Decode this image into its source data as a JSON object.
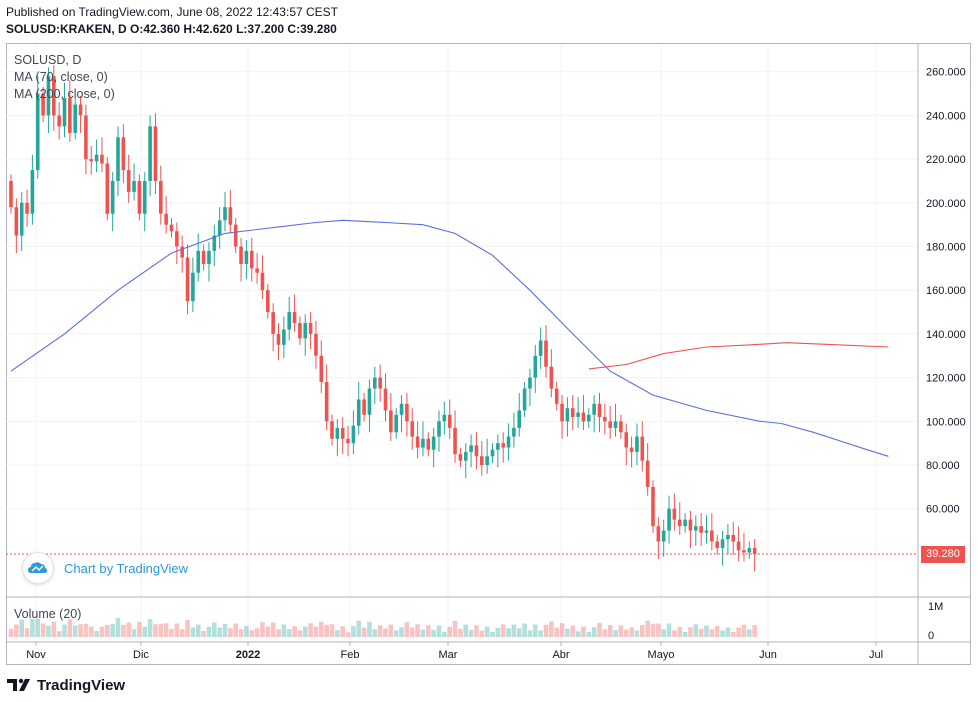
{
  "header": {
    "published": "Published on TradingView.com, June 08, 2022 12:43:57 CEST",
    "ohlc": "SOLUSD:KRAKEN, D  O:42.360 H:42.620 L:37.200 C:39.280"
  },
  "legend": {
    "symbol": "SOLUSD, D",
    "ma70": "MA (70, close, 0)",
    "ma200": "MA (200, close, 0)"
  },
  "badge": {
    "text": "Chart by TradingView"
  },
  "volume": {
    "label": "Volume (20)",
    "axis_labels": [
      "1M",
      "0"
    ]
  },
  "footer": {
    "brand": "TradingView"
  },
  "colors": {
    "up": "#26a69a",
    "down": "#ef5350",
    "ma70": "#5b6ee1",
    "ma200": "#ef5350",
    "grid": "#f0f3fa",
    "axis_text": "#131722"
  },
  "chart_data": {
    "type": "candlestick",
    "y_ticks": [
      "260.000",
      "240.000",
      "220.000",
      "200.000",
      "180.000",
      "160.000",
      "140.000",
      "120.000",
      "100.000",
      "80.000",
      "60.000"
    ],
    "y_tick_values": [
      260,
      240,
      220,
      200,
      180,
      160,
      140,
      120,
      100,
      80,
      60
    ],
    "x_labels": [
      "Nov",
      "Dic",
      "2022",
      "Feb",
      "Mar",
      "Abr",
      "Mayo",
      "Jun",
      "Jul"
    ],
    "last_price": "39.280",
    "last_price_value": 39.28,
    "candles": [
      {
        "o": 210,
        "c": 198
      },
      {
        "o": 198,
        "c": 185
      },
      {
        "o": 185,
        "c": 200
      },
      {
        "o": 200,
        "c": 195
      },
      {
        "o": 195,
        "c": 215
      },
      {
        "o": 215,
        "c": 250
      },
      {
        "o": 250,
        "c": 240
      },
      {
        "o": 240,
        "c": 258
      },
      {
        "o": 258,
        "c": 240
      },
      {
        "o": 240,
        "c": 235
      },
      {
        "o": 235,
        "c": 248
      },
      {
        "o": 248,
        "c": 232
      },
      {
        "o": 232,
        "c": 245
      },
      {
        "o": 245,
        "c": 240
      },
      {
        "o": 240,
        "c": 220
      },
      {
        "o": 220,
        "c": 219
      },
      {
        "o": 219,
        "c": 222
      },
      {
        "o": 222,
        "c": 218
      },
      {
        "o": 218,
        "c": 195
      },
      {
        "o": 195,
        "c": 210
      },
      {
        "o": 210,
        "c": 230
      },
      {
        "o": 230,
        "c": 215
      },
      {
        "o": 215,
        "c": 205
      },
      {
        "o": 205,
        "c": 210
      },
      {
        "o": 210,
        "c": 195
      },
      {
        "o": 195,
        "c": 210
      },
      {
        "o": 210,
        "c": 235
      },
      {
        "o": 235,
        "c": 210
      },
      {
        "o": 210,
        "c": 195
      },
      {
        "o": 195,
        "c": 190
      },
      {
        "o": 190,
        "c": 187
      },
      {
        "o": 187,
        "c": 180
      },
      {
        "o": 180,
        "c": 175
      },
      {
        "o": 175,
        "c": 155
      },
      {
        "o": 155,
        "c": 168
      },
      {
        "o": 168,
        "c": 178
      },
      {
        "o": 178,
        "c": 172
      },
      {
        "o": 172,
        "c": 178
      },
      {
        "o": 178,
        "c": 185
      },
      {
        "o": 185,
        "c": 192
      },
      {
        "o": 192,
        "c": 198
      },
      {
        "o": 198,
        "c": 190
      },
      {
        "o": 190,
        "c": 180
      },
      {
        "o": 180,
        "c": 172
      },
      {
        "o": 172,
        "c": 178
      },
      {
        "o": 178,
        "c": 170
      },
      {
        "o": 170,
        "c": 168
      },
      {
        "o": 168,
        "c": 160
      },
      {
        "o": 160,
        "c": 150
      },
      {
        "o": 150,
        "c": 140
      },
      {
        "o": 140,
        "c": 135
      },
      {
        "o": 135,
        "c": 142
      },
      {
        "o": 142,
        "c": 150
      },
      {
        "o": 150,
        "c": 145
      },
      {
        "o": 145,
        "c": 138
      },
      {
        "o": 138,
        "c": 145
      },
      {
        "o": 145,
        "c": 140
      },
      {
        "o": 140,
        "c": 130
      },
      {
        "o": 130,
        "c": 118
      },
      {
        "o": 118,
        "c": 100
      },
      {
        "o": 100,
        "c": 92
      },
      {
        "o": 92,
        "c": 97
      },
      {
        "o": 97,
        "c": 92
      },
      {
        "o": 92,
        "c": 90
      },
      {
        "o": 90,
        "c": 98
      },
      {
        "o": 98,
        "c": 110
      },
      {
        "o": 110,
        "c": 103
      },
      {
        "o": 103,
        "c": 115
      },
      {
        "o": 115,
        "c": 120
      },
      {
        "o": 120,
        "c": 115
      },
      {
        "o": 115,
        "c": 105
      },
      {
        "o": 105,
        "c": 95
      },
      {
        "o": 95,
        "c": 103
      },
      {
        "o": 103,
        "c": 108
      },
      {
        "o": 108,
        "c": 100
      },
      {
        "o": 100,
        "c": 93
      },
      {
        "o": 93,
        "c": 88
      },
      {
        "o": 88,
        "c": 92
      },
      {
        "o": 92,
        "c": 87
      },
      {
        "o": 87,
        "c": 93
      },
      {
        "o": 93,
        "c": 100
      },
      {
        "o": 100,
        "c": 103
      },
      {
        "o": 103,
        "c": 97
      },
      {
        "o": 97,
        "c": 85
      },
      {
        "o": 85,
        "c": 82
      },
      {
        "o": 82,
        "c": 86
      },
      {
        "o": 86,
        "c": 89
      },
      {
        "o": 89,
        "c": 84
      },
      {
        "o": 84,
        "c": 80
      },
      {
        "o": 80,
        "c": 84
      },
      {
        "o": 84,
        "c": 87
      },
      {
        "o": 87,
        "c": 90
      },
      {
        "o": 90,
        "c": 88
      },
      {
        "o": 88,
        "c": 93
      },
      {
        "o": 93,
        "c": 97
      },
      {
        "o": 97,
        "c": 105
      },
      {
        "o": 105,
        "c": 115
      },
      {
        "o": 115,
        "c": 120
      },
      {
        "o": 120,
        "c": 130
      },
      {
        "o": 130,
        "c": 137
      },
      {
        "o": 137,
        "c": 125
      },
      {
        "o": 125,
        "c": 115
      },
      {
        "o": 115,
        "c": 108
      },
      {
        "o": 108,
        "c": 100
      },
      {
        "o": 100,
        "c": 106
      },
      {
        "o": 106,
        "c": 102
      },
      {
        "o": 102,
        "c": 104
      },
      {
        "o": 104,
        "c": 100
      },
      {
        "o": 100,
        "c": 103
      },
      {
        "o": 103,
        "c": 108
      },
      {
        "o": 108,
        "c": 102
      },
      {
        "o": 102,
        "c": 100
      },
      {
        "o": 100,
        "c": 97
      },
      {
        "o": 97,
        "c": 100
      },
      {
        "o": 100,
        "c": 95
      },
      {
        "o": 95,
        "c": 88
      },
      {
        "o": 88,
        "c": 86
      },
      {
        "o": 86,
        "c": 93
      },
      {
        "o": 93,
        "c": 82
      },
      {
        "o": 82,
        "c": 70
      },
      {
        "o": 70,
        "c": 52
      },
      {
        "o": 52,
        "c": 45
      },
      {
        "o": 45,
        "c": 50
      },
      {
        "o": 50,
        "c": 60
      },
      {
        "o": 60,
        "c": 55
      },
      {
        "o": 55,
        "c": 52
      },
      {
        "o": 52,
        "c": 55
      },
      {
        "o": 55,
        "c": 50
      },
      {
        "o": 50,
        "c": 52
      },
      {
        "o": 52,
        "c": 49
      },
      {
        "o": 49,
        "c": 50
      },
      {
        "o": 50,
        "c": 45
      },
      {
        "o": 45,
        "c": 42
      },
      {
        "o": 42,
        "c": 46
      },
      {
        "o": 46,
        "c": 48
      },
      {
        "o": 48,
        "c": 45
      },
      {
        "o": 45,
        "c": 41
      },
      {
        "o": 41,
        "c": 40
      },
      {
        "o": 40,
        "c": 42
      },
      {
        "o": 42,
        "c": 39.28
      }
    ],
    "ma70": [
      [
        0,
        123
      ],
      [
        10,
        140
      ],
      [
        20,
        160
      ],
      [
        30,
        177
      ],
      [
        40,
        186
      ],
      [
        50,
        189
      ],
      [
        57,
        191
      ],
      [
        62,
        192
      ],
      [
        70,
        191
      ],
      [
        77,
        190
      ],
      [
        83,
        186
      ],
      [
        90,
        176
      ],
      [
        97,
        160
      ],
      [
        105,
        140
      ],
      [
        112,
        123
      ],
      [
        120,
        112
      ],
      [
        130,
        105
      ],
      [
        140,
        100
      ],
      [
        144,
        99
      ],
      [
        150,
        95
      ],
      [
        155,
        91
      ],
      [
        160,
        87
      ],
      [
        164,
        84
      ]
    ],
    "ma200": [
      [
        108,
        124
      ],
      [
        115,
        126
      ],
      [
        122,
        131
      ],
      [
        130,
        134
      ],
      [
        138,
        135
      ],
      [
        145,
        136
      ],
      [
        155,
        135
      ],
      [
        164,
        134
      ]
    ]
  }
}
